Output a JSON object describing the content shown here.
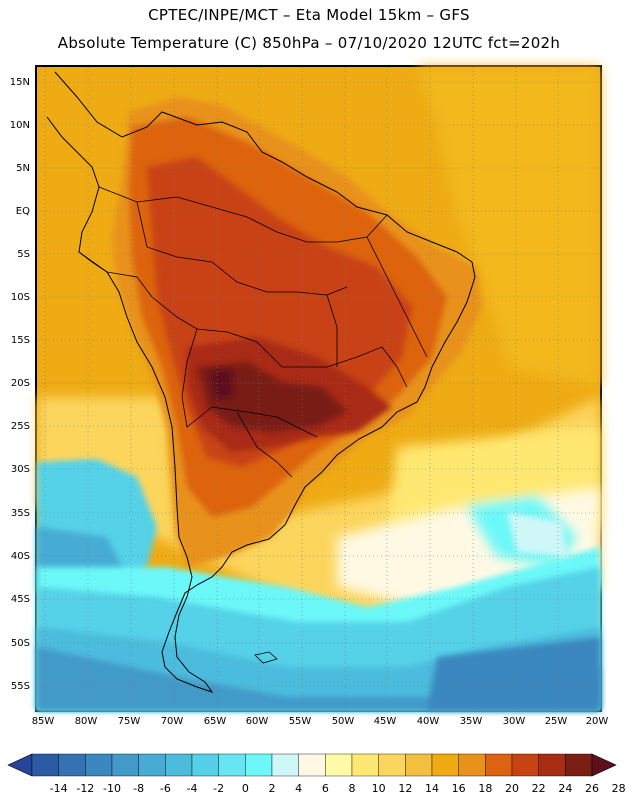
{
  "header": {
    "line1": "CPTEC/INPE/MCT –  Eta Model 15km – GFS",
    "line2": "Absolute Temperature (C) 850hPa – 07/10/2020 12UTC fct=202h"
  },
  "map": {
    "region": "South America",
    "lat_labels": [
      "15N",
      "10N",
      "5N",
      "EQ",
      "5S",
      "10S",
      "15S",
      "20S",
      "25S",
      "30S",
      "35S",
      "40S",
      "45S",
      "50S",
      "55S"
    ],
    "lon_labels": [
      "85W",
      "80W",
      "75W",
      "70W",
      "65W",
      "60W",
      "55W",
      "50W",
      "45W",
      "40W",
      "35W",
      "30W",
      "25W",
      "20W"
    ],
    "colors": {
      "ocean_warm": "#e9a11e",
      "land_hot": "#b6471a",
      "land_hottest": "#6b1f17",
      "cold_ocean": "#2ec6e6",
      "coldest": "#2a5ea8",
      "pale": "#fff5cc"
    }
  },
  "legend": {
    "title_values": [
      "-14",
      "-12",
      "-10",
      "-8",
      "-6",
      "-4",
      "-2",
      "0",
      "2",
      "4",
      "6",
      "8",
      "10",
      "12",
      "14",
      "16",
      "18",
      "20",
      "22",
      "24",
      "26",
      "28"
    ],
    "colors": [
      "#27449b",
      "#2c5aa5",
      "#3472b3",
      "#3b87bf",
      "#429ac9",
      "#46acd4",
      "#4cbcdd",
      "#54d1e8",
      "#66e5f2",
      "#6cf8f8",
      "#cff7f8",
      "#fff9e4",
      "#fffaa4",
      "#ffe872",
      "#fcd55d",
      "#f5bf3e",
      "#eeab14",
      "#e8921c",
      "#dd6310",
      "#c84312",
      "#a92b12",
      "#7a1e16",
      "#5d0f1e"
    ]
  }
}
